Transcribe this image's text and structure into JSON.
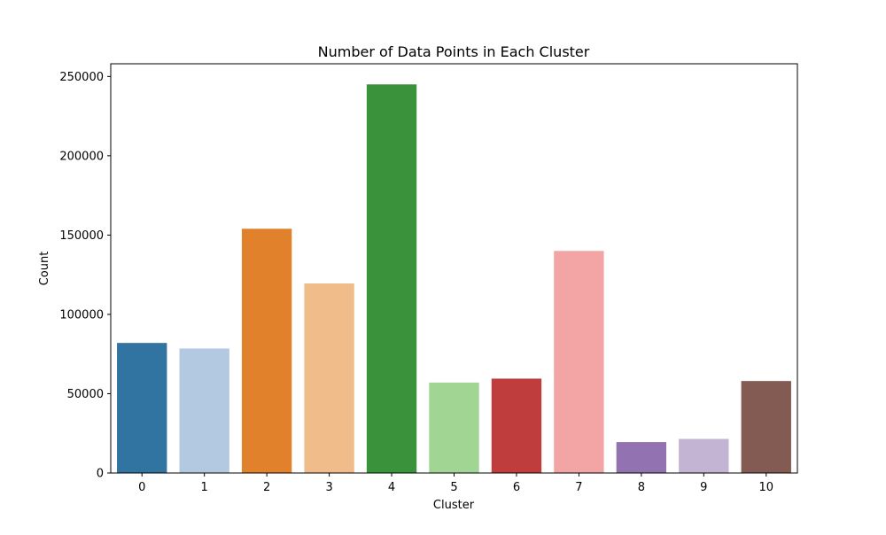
{
  "chart_data": {
    "type": "bar",
    "title": "Number of Data Points in Each Cluster",
    "xlabel": "Cluster",
    "ylabel": "Count",
    "categories": [
      "0",
      "1",
      "2",
      "3",
      "4",
      "5",
      "6",
      "7",
      "8",
      "9",
      "10"
    ],
    "values": [
      82000,
      78500,
      154000,
      119500,
      245000,
      57000,
      59500,
      140000,
      19500,
      21500,
      58000
    ],
    "colors": [
      "#3274a1",
      "#b3c9e2",
      "#e1812c",
      "#efbc8a",
      "#3a923a",
      "#a0d594",
      "#c03d3e",
      "#f2a5a4",
      "#9372b2",
      "#c4b4d3",
      "#845b53"
    ],
    "ylim": [
      0,
      258000
    ],
    "yticks": [
      0,
      50000,
      100000,
      150000,
      200000,
      250000
    ],
    "ytick_labels": [
      "0",
      "50000",
      "100000",
      "150000",
      "200000",
      "250000"
    ],
    "grid": false,
    "legend": "none"
  }
}
